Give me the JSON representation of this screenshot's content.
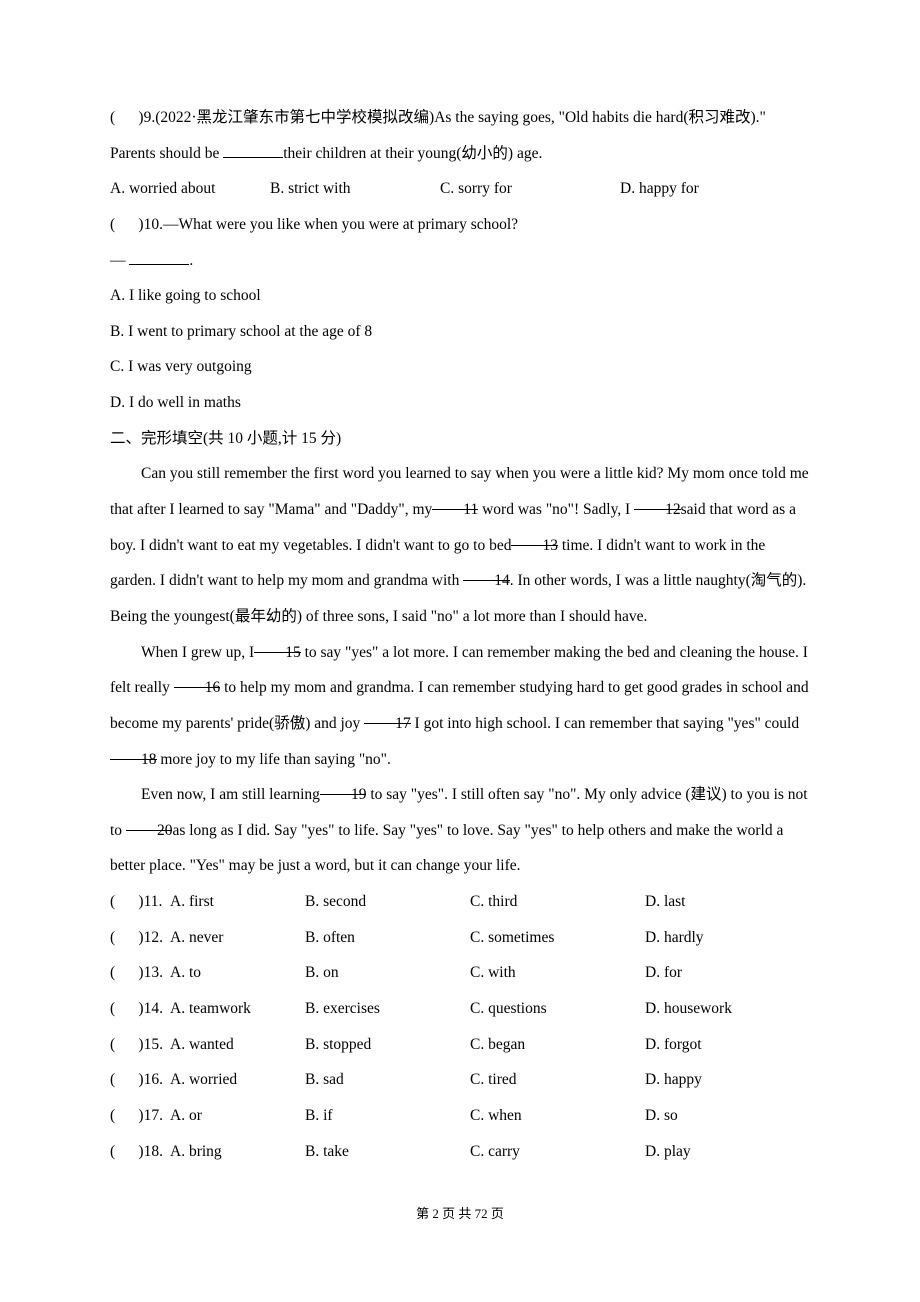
{
  "q9": {
    "open": "(",
    "close": ")9.(2022·黑龙江肇东市第七中学校模拟改编)As the saying goes, \"Old habits die hard(积习难改).\" Parents should be ",
    "tail": "their children at their young(幼小的) age.",
    "options": {
      "a": "A. worried about",
      "b": "B. strict with",
      "c": "C. sorry for",
      "d": "D. happy for"
    }
  },
  "q10": {
    "open": "(",
    "line1": ")10.—What were you like when you were at primary school?",
    "dash": "— ",
    "period": ".",
    "opts": {
      "a": "A. I like going to school",
      "b": "B. I went to primary school at the age of 8",
      "c": "C. I was very outgoing",
      "d": "D. I do well in maths"
    }
  },
  "section2_title": "二、完形填空(共 10 小题,计 15 分)",
  "passage": {
    "p1a": "Can you still remember the first word you learned to say when you were a little kid? My mom once told me that after I learned to say \"Mama\" and \"Daddy\", my",
    "b11": "  11  ",
    "p1b": " word was \"no\"! Sadly, I ",
    "b12": "  12  ",
    "p1c": "said that word as a boy. I didn't want to eat my vegetables. I didn't want to go to bed",
    "b13": "  13  ",
    "p1d": " time. I didn't want to work in the garden. I didn't want to help my mom and grandma with ",
    "b14": "  14  ",
    "p1e": ". In other words, I was a little naughty(淘气的). Being the youngest(最年幼的) of three sons, I said \"no\" a lot more than I should have.",
    "p2a": "When I grew up, I",
    "b15": "  15  ",
    "p2b": " to say \"yes\" a lot more. I can remember making the bed and cleaning the house. I felt really ",
    "b16": "  16  ",
    "p2c": " to help my mom and grandma. I can remember studying hard to get good grades in school and become my parents' pride(骄傲) and joy ",
    "b17": "  17  ",
    "p2d": " I got into high school. I can remember that saying \"yes\" could ",
    "b18": "  18  ",
    "p2e": " more joy to my life than saying \"no\".",
    "p3a": "Even now, I am still learning",
    "b19": "  19  ",
    "p3b": " to say \"yes\". I still often say \"no\". My only advice (建议) to you is not to ",
    "b20": "  20  ",
    "p3c": "as long as I did. Say \"yes\" to life. Say \"yes\" to love. Say \"yes\" to help others and make the world a better place. \"Yes\" may be just a word, but it can change your life."
  },
  "cloze": [
    {
      "n": "11",
      "a": "A. first",
      "b": "B. second",
      "c": "C. third",
      "d": "D. last"
    },
    {
      "n": "12",
      "a": "A. never",
      "b": "B. often",
      "c": "C. sometimes",
      "d": "D. hardly"
    },
    {
      "n": "13",
      "a": "A. to",
      "b": "B. on",
      "c": "C. with",
      "d": "D. for"
    },
    {
      "n": "14",
      "a": "A. teamwork",
      "b": "B. exercises",
      "c": "C. questions",
      "d": "D. housework"
    },
    {
      "n": "15",
      "a": "A. wanted",
      "b": "B. stopped",
      "c": "C. began",
      "d": "D. forgot"
    },
    {
      "n": "16",
      "a": "A. worried",
      "b": "B. sad",
      "c": "C. tired",
      "d": "D. happy"
    },
    {
      "n": "17",
      "a": "A. or",
      "b": "B. if",
      "c": "C. when",
      "d": "D. so"
    },
    {
      "n": "18",
      "a": "A. bring",
      "b": "B. take",
      "c": "C. carry",
      "d": "D. play"
    }
  ],
  "footer": "第 2 页 共 72 页",
  "paren_open": "(",
  "paren_close_num_prefix": ")"
}
